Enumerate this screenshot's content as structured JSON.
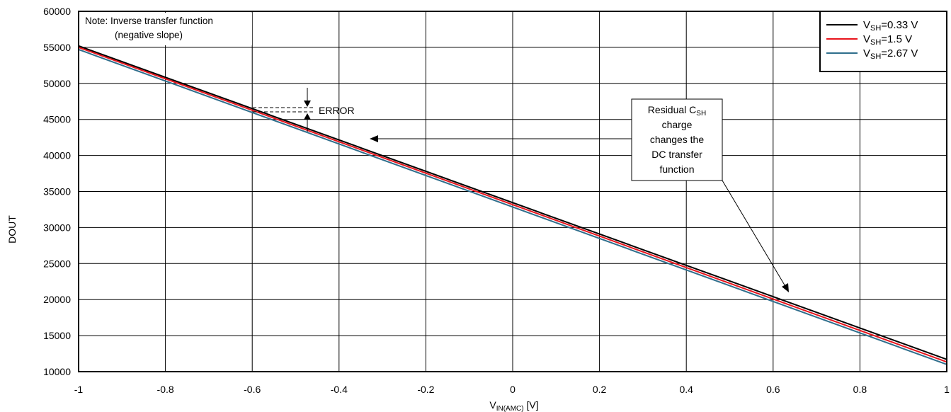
{
  "chart_data": {
    "type": "line",
    "xlabel": "V",
    "xlabel_sub": "IN(AMC)",
    "xlabel_unit": " [V]",
    "ylabel": "DOUT",
    "xlim": [
      -1,
      1
    ],
    "ylim": [
      10000,
      60000
    ],
    "grid": true,
    "legend_position": "top-right",
    "x_ticks": [
      -1,
      -0.8,
      -0.6,
      -0.4,
      -0.2,
      0,
      0.2,
      0.4,
      0.6,
      0.8,
      1
    ],
    "y_ticks": [
      10000,
      15000,
      20000,
      25000,
      30000,
      35000,
      40000,
      45000,
      50000,
      55000,
      60000
    ],
    "series": [
      {
        "name_main": "V",
        "name_sub": "SH",
        "name_rest": "=0.33 V",
        "color": "#000000",
        "x": [
          -1,
          1
        ],
        "y": [
          55200,
          11700
        ]
      },
      {
        "name_main": "V",
        "name_sub": "SH",
        "name_rest": "=1.5 V",
        "color": "#e8141c",
        "x": [
          -1,
          1
        ],
        "y": [
          55000,
          11350
        ]
      },
      {
        "name_main": "V",
        "name_sub": "SH",
        "name_rest": "=2.67 V",
        "color": "#2f6e8c",
        "x": [
          -1,
          1
        ],
        "y": [
          54700,
          11000
        ]
      }
    ],
    "annotations": {
      "note_line1": "Note: Inverse transfer function",
      "note_line2": "(negative slope)",
      "error_label": "ERROR",
      "residual_line1_main": "Residual C",
      "residual_line1_sub": "SH",
      "residual_line2": "charge",
      "residual_line3": "changes the",
      "residual_line4": "DC transfer",
      "residual_line5": "function"
    }
  },
  "colors": {
    "grid": "#000000",
    "axis": "#000000",
    "background": "#ffffff"
  }
}
